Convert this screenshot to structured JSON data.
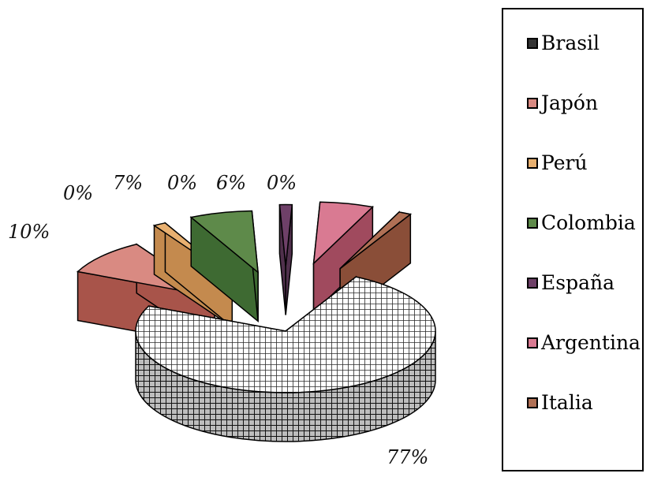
{
  "chart_data": {
    "type": "pie",
    "style": "3d-exploded",
    "categories": [
      "Brasil",
      "Japón",
      "Perú",
      "Colombia",
      "España",
      "Argentina",
      "Italia"
    ],
    "values": [
      77,
      10,
      0,
      7,
      0,
      6,
      0
    ],
    "data_labels": [
      "77%",
      "10%",
      "0%",
      "7%",
      "0%",
      "6%",
      "0%"
    ],
    "legend_position": "right",
    "colors": {
      "Brasil": "#3a3a3a",
      "Japón": "#d98a82",
      "Perú": "#e8b070",
      "Colombia": "#5e8a4a",
      "España": "#6e4068",
      "Argentina": "#d97a92",
      "Italia": "#b07055"
    },
    "side_colors": {
      "Brasil": "#2a2a2a",
      "Japón": "#a8544a",
      "Perú": "#c48a4e",
      "Colombia": "#3e6a32",
      "España": "#50304c",
      "Argentina": "#a04a5e",
      "Italia": "#8a4e38"
    }
  }
}
